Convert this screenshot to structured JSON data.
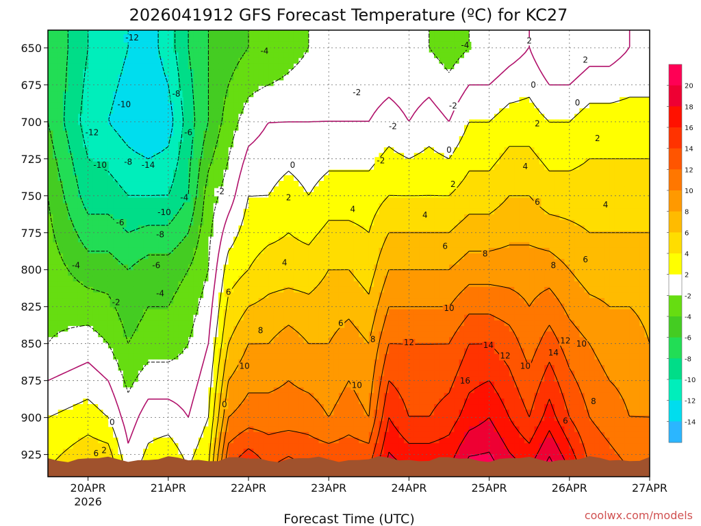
{
  "chart_data": {
    "type": "heatmap",
    "title": "2026041912 GFS Forecast Temperature (ºC) for KC27",
    "xlabel": "Forecast Time (UTC)",
    "ylabel": "",
    "x_ticks": [
      "20APR",
      "21APR",
      "22APR",
      "23APR",
      "24APR",
      "25APR",
      "26APR",
      "27APR"
    ],
    "x_year_label": "2026",
    "y_ticks": [
      650,
      675,
      700,
      725,
      750,
      775,
      800,
      825,
      850,
      875,
      900,
      925
    ],
    "ylim": [
      940,
      638
    ],
    "xlim_days": [
      -0.5,
      7.0
    ],
    "colorbar": {
      "levels": [
        -16,
        -14,
        -12,
        -10,
        -8,
        -6,
        -4,
        -2,
        2,
        4,
        6,
        8,
        10,
        12,
        14,
        16,
        18,
        20,
        22
      ],
      "labels": [
        "20",
        "18",
        "16",
        "14",
        "12",
        "10",
        "8",
        "6",
        "4",
        "2",
        "-2",
        "-4",
        "-6",
        "-8",
        "-10",
        "-12",
        "-14"
      ],
      "colors": [
        "#2bb6ff",
        "#00ddee",
        "#00eebb",
        "#00dd88",
        "#22dd55",
        "#44cc22",
        "#66dd11",
        "#ffffff",
        "#ffff00",
        "#ffdd00",
        "#ffbb00",
        "#ff9900",
        "#ff7700",
        "#ff5500",
        "#ff3300",
        "#ff1100",
        "#ee0033",
        "#ff0055"
      ]
    },
    "profiles_by_pressure": [
      650,
      700,
      750,
      800,
      850,
      900,
      935
    ],
    "series": [
      {
        "day": -0.5,
        "temps": [
          -6,
          -6,
          -4,
          -3,
          -2,
          2,
          4
        ]
      },
      {
        "day": 0.0,
        "temps": [
          -10,
          -11,
          -9,
          -5,
          -1,
          3,
          6
        ]
      },
      {
        "day": 0.25,
        "temps": [
          -11,
          -12,
          -9,
          -5,
          -2,
          2,
          6
        ]
      },
      {
        "day": 0.5,
        "temps": [
          -12,
          -13,
          -10,
          -6,
          -4,
          -1,
          1
        ]
      },
      {
        "day": 0.75,
        "temps": [
          -13,
          -14,
          -10,
          -5,
          -3,
          1,
          3
        ]
      },
      {
        "day": 1.0,
        "temps": [
          -11,
          -13,
          -10,
          -5,
          -3,
          1,
          4
        ]
      },
      {
        "day": 1.25,
        "temps": [
          -8,
          -9,
          -8,
          -4,
          -2,
          0,
          2
        ]
      },
      {
        "day": 1.5,
        "temps": [
          -6,
          -6,
          -3,
          -2,
          0,
          2,
          4
        ]
      },
      {
        "day": 1.75,
        "temps": [
          -5,
          -3,
          -1,
          3,
          6,
          10,
          14
        ]
      },
      {
        "day": 2.0,
        "temps": [
          -4,
          -1,
          2,
          4,
          8,
          11,
          16
        ]
      },
      {
        "day": 2.25,
        "temps": [
          -4,
          0,
          2,
          5,
          8,
          11,
          14
        ]
      },
      {
        "day": 2.5,
        "temps": [
          -3,
          0,
          3,
          5,
          9,
          11,
          15
        ]
      },
      {
        "day": 2.75,
        "temps": [
          -2,
          0,
          2,
          5,
          8,
          11,
          14
        ]
      },
      {
        "day": 3.0,
        "temps": [
          -2,
          0,
          3,
          6,
          8,
          10,
          14
        ]
      },
      {
        "day": 3.25,
        "temps": [
          -2,
          0,
          3,
          6,
          9,
          11,
          14
        ]
      },
      {
        "day": 3.5,
        "temps": [
          -2,
          0,
          3,
          5,
          8,
          10,
          14
        ]
      },
      {
        "day": 3.75,
        "temps": [
          -2,
          1,
          4,
          8,
          12,
          16,
          19
        ]
      },
      {
        "day": 4.0,
        "temps": [
          -2,
          0,
          4,
          8,
          12,
          14,
          18
        ]
      },
      {
        "day": 4.25,
        "temps": [
          -2,
          1,
          4,
          8,
          12,
          14,
          18
        ]
      },
      {
        "day": 4.5,
        "temps": [
          -3,
          0,
          4,
          8,
          12,
          15,
          18
        ]
      },
      {
        "day": 4.75,
        "temps": [
          -2,
          2,
          5,
          9,
          14,
          17,
          21
        ]
      },
      {
        "day": 5.0,
        "temps": [
          -2,
          2,
          5,
          9,
          14,
          18,
          21
        ]
      },
      {
        "day": 5.25,
        "temps": [
          -1,
          3,
          6,
          9,
          13,
          16,
          19
        ]
      },
      {
        "day": 5.5,
        "temps": [
          0,
          3,
          6,
          9,
          11,
          14,
          18
        ]
      },
      {
        "day": 5.75,
        "temps": [
          -2,
          2,
          5,
          9,
          13,
          17,
          21
        ]
      },
      {
        "day": 6.0,
        "temps": [
          -2,
          2,
          5,
          8,
          11,
          14,
          18
        ]
      },
      {
        "day": 6.25,
        "temps": [
          -1,
          3,
          5,
          7,
          10,
          12,
          14
        ]
      },
      {
        "day": 6.5,
        "temps": [
          -1,
          3,
          5,
          7,
          9,
          11,
          13
        ]
      },
      {
        "day": 6.75,
        "temps": [
          0,
          3,
          5,
          7,
          9,
          10,
          12
        ]
      },
      {
        "day": 7.0,
        "temps": [
          0,
          3,
          5,
          7,
          8,
          10,
          12
        ]
      }
    ],
    "contour_labels": [
      {
        "text": "-12",
        "day": 0.55,
        "p": 645
      },
      {
        "text": "-10",
        "day": 0.45,
        "p": 690
      },
      {
        "text": "-12",
        "day": 0.05,
        "p": 709
      },
      {
        "text": "-10",
        "day": 0.15,
        "p": 731
      },
      {
        "text": "-8",
        "day": 0.5,
        "p": 729
      },
      {
        "text": "-14",
        "day": 0.75,
        "p": 731
      },
      {
        "text": "-8",
        "day": 1.1,
        "p": 683
      },
      {
        "text": "-6",
        "day": 1.25,
        "p": 709
      },
      {
        "text": "-10",
        "day": 0.95,
        "p": 763
      },
      {
        "text": "-4",
        "day": 1.2,
        "p": 753
      },
      {
        "text": "-6",
        "day": 0.4,
        "p": 770
      },
      {
        "text": "-8",
        "day": 0.9,
        "p": 778
      },
      {
        "text": "-6",
        "day": 0.85,
        "p": 799
      },
      {
        "text": "-4",
        "day": 0.9,
        "p": 818
      },
      {
        "text": "-4",
        "day": -0.15,
        "p": 799
      },
      {
        "text": "-2",
        "day": 0.35,
        "p": 824
      },
      {
        "text": "-4",
        "day": 2.2,
        "p": 654
      },
      {
        "text": "-2",
        "day": 1.65,
        "p": 749
      },
      {
        "text": "-2",
        "day": 3.35,
        "p": 682
      },
      {
        "text": "-4",
        "day": 4.7,
        "p": 650
      },
      {
        "text": "2",
        "day": 5.5,
        "p": 647
      },
      {
        "text": "2",
        "day": 6.2,
        "p": 660
      },
      {
        "text": "0",
        "day": 5.55,
        "p": 677
      },
      {
        "text": "0",
        "day": 6.1,
        "p": 689
      },
      {
        "text": "-2",
        "day": 4.55,
        "p": 691
      },
      {
        "text": "-2",
        "day": 3.8,
        "p": 705
      },
      {
        "text": "0",
        "day": 4.5,
        "p": 721
      },
      {
        "text": "-2",
        "day": 3.65,
        "p": 728
      },
      {
        "text": "0",
        "day": 2.55,
        "p": 731
      },
      {
        "text": "2",
        "day": 5.6,
        "p": 703
      },
      {
        "text": "2",
        "day": 6.35,
        "p": 713
      },
      {
        "text": "4",
        "day": 5.45,
        "p": 732
      },
      {
        "text": "2",
        "day": 4.55,
        "p": 744
      },
      {
        "text": "2",
        "day": 2.5,
        "p": 753
      },
      {
        "text": "4",
        "day": 3.3,
        "p": 761
      },
      {
        "text": "4",
        "day": 4.2,
        "p": 765
      },
      {
        "text": "6",
        "day": 5.6,
        "p": 756
      },
      {
        "text": "4",
        "day": 6.45,
        "p": 758
      },
      {
        "text": "6",
        "day": 4.45,
        "p": 786
      },
      {
        "text": "8",
        "day": 4.95,
        "p": 791
      },
      {
        "text": "8",
        "day": 5.8,
        "p": 799
      },
      {
        "text": "6",
        "day": 6.2,
        "p": 795
      },
      {
        "text": "4",
        "day": 2.45,
        "p": 797
      },
      {
        "text": "6",
        "day": 1.75,
        "p": 817
      },
      {
        "text": "8",
        "day": 2.15,
        "p": 843
      },
      {
        "text": "6",
        "day": 3.15,
        "p": 838
      },
      {
        "text": "8",
        "day": 3.55,
        "p": 849
      },
      {
        "text": "10",
        "day": 4.5,
        "p": 828
      },
      {
        "text": "12",
        "day": 4.0,
        "p": 851
      },
      {
        "text": "14",
        "day": 4.99,
        "p": 853
      },
      {
        "text": "12",
        "day": 5.2,
        "p": 860
      },
      {
        "text": "12",
        "day": 5.95,
        "p": 850
      },
      {
        "text": "10",
        "day": 6.15,
        "p": 852
      },
      {
        "text": "14",
        "day": 5.8,
        "p": 858
      },
      {
        "text": "10",
        "day": 5.45,
        "p": 867
      },
      {
        "text": "10",
        "day": 1.95,
        "p": 867
      },
      {
        "text": "10",
        "day": 3.35,
        "p": 880
      },
      {
        "text": "16",
        "day": 4.7,
        "p": 877
      },
      {
        "text": "8",
        "day": 6.3,
        "p": 891
      },
      {
        "text": "6",
        "day": 5.95,
        "p": 904
      },
      {
        "text": "0",
        "day": 1.7,
        "p": 893
      },
      {
        "text": "0",
        "day": 0.3,
        "p": 905
      },
      {
        "text": "6",
        "day": 0.1,
        "p": 926
      },
      {
        "text": "2",
        "day": 0.2,
        "p": 924
      }
    ]
  },
  "credit": "coolwx.com/models"
}
